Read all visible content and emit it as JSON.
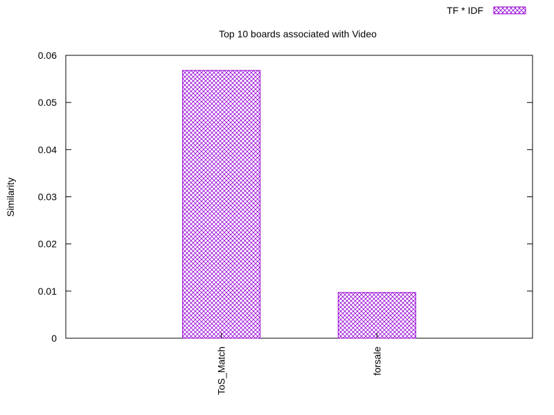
{
  "chart_data": {
    "type": "bar",
    "title": "Top 10 boards associated with Video",
    "xlabel": "",
    "ylabel": "Similarity",
    "categories": [
      "ToS_Match",
      "forsale"
    ],
    "series": [
      {
        "name": "TF * IDF",
        "values": [
          0.0568,
          0.0097
        ],
        "color": "#9400d3",
        "pattern": "crosshatch"
      }
    ],
    "ylim": [
      0,
      0.06
    ],
    "yticks": [
      "0",
      "0.01",
      "0.02",
      "0.03",
      "0.04",
      "0.05",
      "0.06"
    ],
    "grid": false,
    "legend_position": "top-right"
  }
}
